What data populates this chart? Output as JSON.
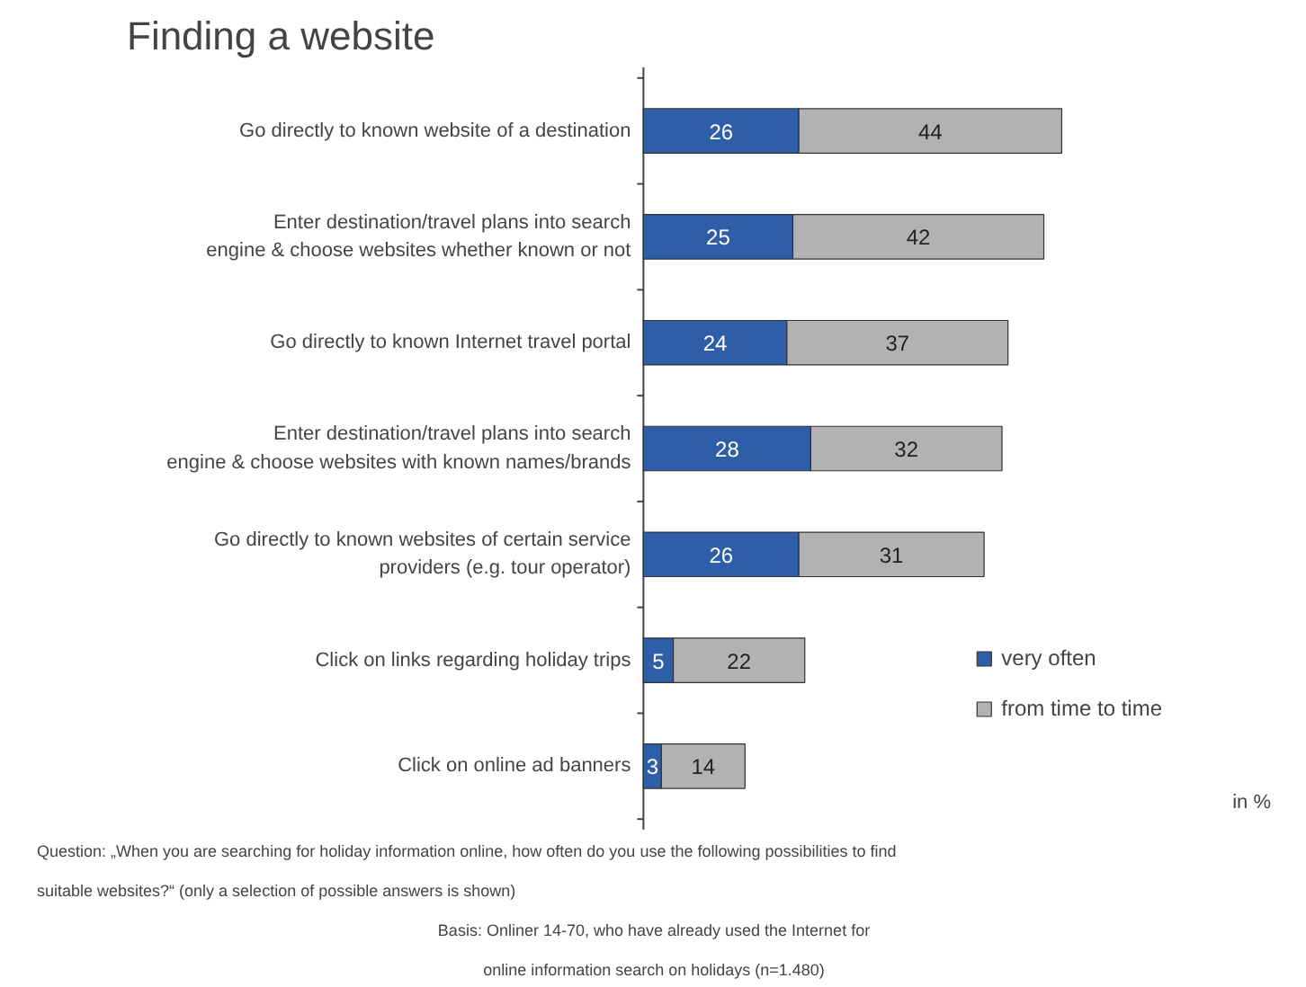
{
  "chart_data": {
    "type": "bar",
    "orientation": "horizontal",
    "stacked": true,
    "data_labels": true,
    "title": "Finding a website",
    "categories": [
      "Go directly to known website of a destination",
      "Enter destination/travel plans into search engine & choose websites whether known or not",
      "Go directly to known Internet travel portal",
      "Enter destination/travel plans into search engine & choose websites with known names/brands",
      "Go directly to known websites of certain service providers (e.g. tour operator)",
      "Click on links regarding holiday trips",
      "Click on online ad banners"
    ],
    "series": [
      {
        "name": "very often",
        "color": "#2e5ea8",
        "values": [
          26,
          25,
          24,
          28,
          26,
          5,
          3
        ]
      },
      {
        "name": "from time to time",
        "color": "#b2b2b2",
        "values": [
          44,
          42,
          37,
          32,
          31,
          22,
          14
        ]
      }
    ],
    "legend": "bottom right",
    "grid": false,
    "annotations": [
      "in %",
      "Question: „When you are searching for holiday information online, how often do you use the following possibilities to find suitable websites?“ (only a selection of possible answers is shown)",
      "Basis: Onliner 14-70, who have already used the Internet for online information search on holidays (n=1.480)"
    ]
  }
}
